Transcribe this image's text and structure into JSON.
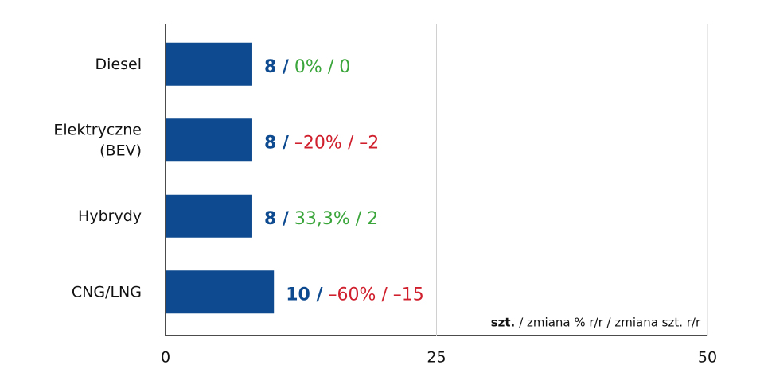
{
  "chart_data": {
    "type": "bar",
    "orientation": "horizontal",
    "categories": [
      "Diesel",
      "Elektryczne\n(BEV)",
      "Hybrydy",
      "CNG/LNG"
    ],
    "values": [
      8,
      8,
      8,
      10
    ],
    "value_labels": [
      "8 /",
      "8 /",
      "8 /",
      "10 /"
    ],
    "change_labels": [
      "0% / 0",
      "–20% / –2",
      "33,3% / 2",
      "–60% / –15"
    ],
    "change_colors": [
      "#3aa53a",
      "#d0202e",
      "#3aa53a",
      "#d0202e"
    ],
    "color": "#0d4a8f",
    "xlim": [
      0,
      50
    ],
    "xticks": [
      0,
      25,
      50
    ],
    "grid": true,
    "annotation_bold": "szt.",
    "annotation": "/ zmiana % r/r / zmiana szt. r/r"
  }
}
